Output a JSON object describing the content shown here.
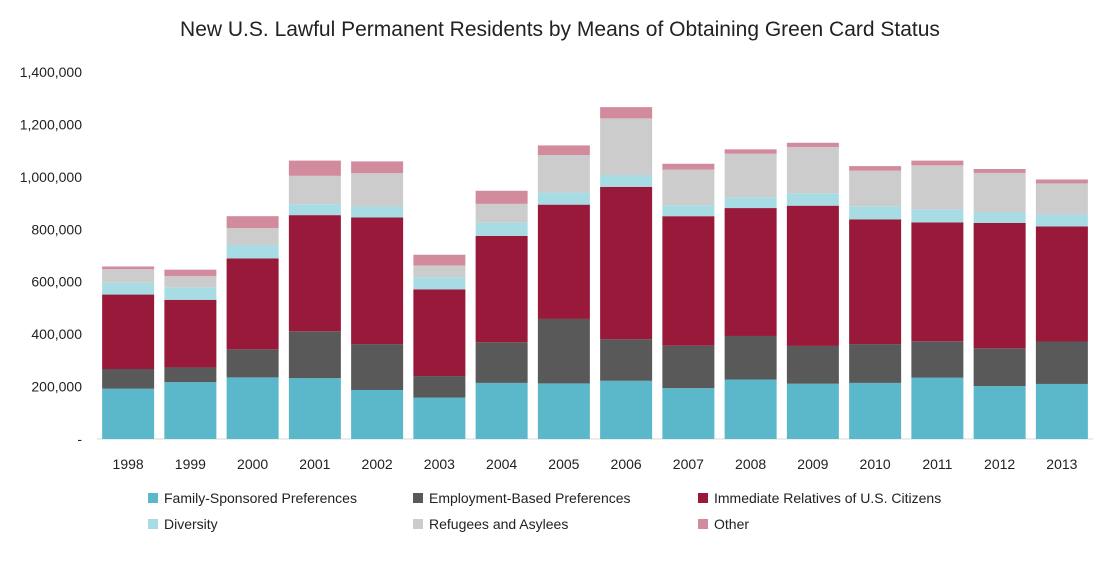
{
  "chart_data": {
    "type": "bar",
    "stacked": true,
    "title": "New U.S. Lawful Permanent Residents by Means of Obtaining Green Card Status",
    "xlabel": "",
    "ylabel": "",
    "ylim": [
      0,
      1400000
    ],
    "yticks": [
      {
        "value": 0,
        "label": "-"
      },
      {
        "value": 200000,
        "label": "200,000"
      },
      {
        "value": 400000,
        "label": "400,000"
      },
      {
        "value": 600000,
        "label": "600,000"
      },
      {
        "value": 800000,
        "label": "800,000"
      },
      {
        "value": 1000000,
        "label": "1,000,000"
      },
      {
        "value": 1200000,
        "label": "1,200,000"
      },
      {
        "value": 1400000,
        "label": "1,400,000"
      }
    ],
    "grid": false,
    "legend_position": "bottom",
    "categories": [
      "1998",
      "1999",
      "2000",
      "2001",
      "2002",
      "2003",
      "2004",
      "2005",
      "2006",
      "2007",
      "2008",
      "2009",
      "2010",
      "2011",
      "2012",
      "2013"
    ],
    "series": [
      {
        "name": "Family-Sponsored Preferences",
        "color": "#5bb8cb",
        "values": [
          192000,
          217000,
          235000,
          232000,
          187000,
          158000,
          214000,
          212000,
          222000,
          194000,
          227000,
          211000,
          214000,
          234000,
          202000,
          210000
        ]
      },
      {
        "name": "Employment-Based Preferences",
        "color": "#595959",
        "values": [
          75000,
          56000,
          107000,
          179000,
          175000,
          82000,
          155000,
          246000,
          159000,
          162000,
          166000,
          144000,
          148000,
          139000,
          144000,
          162000
        ]
      },
      {
        "name": "Immediate Relatives of U.S. Citizens",
        "color": "#98193a",
        "values": [
          284000,
          258000,
          347000,
          443000,
          483000,
          331000,
          406000,
          436000,
          581000,
          494000,
          488000,
          535000,
          476000,
          453000,
          478000,
          439000
        ]
      },
      {
        "name": "Diversity",
        "color": "#a8dce5",
        "values": [
          45000,
          48000,
          51000,
          42000,
          42000,
          46000,
          50000,
          46000,
          45000,
          42000,
          41000,
          47000,
          50000,
          50000,
          40000,
          45000
        ]
      },
      {
        "name": "Refugees and Asylees",
        "color": "#cccccc",
        "values": [
          52000,
          42000,
          65000,
          108000,
          127000,
          45000,
          72000,
          143000,
          216000,
          136000,
          166000,
          177000,
          136000,
          168000,
          151000,
          119000
        ]
      },
      {
        "name": "Other",
        "color": "#d28a9d",
        "values": [
          10000,
          25000,
          45000,
          58000,
          45000,
          41000,
          50000,
          37000,
          43000,
          22000,
          17000,
          16000,
          17000,
          18000,
          15000,
          15000
        ]
      }
    ]
  }
}
